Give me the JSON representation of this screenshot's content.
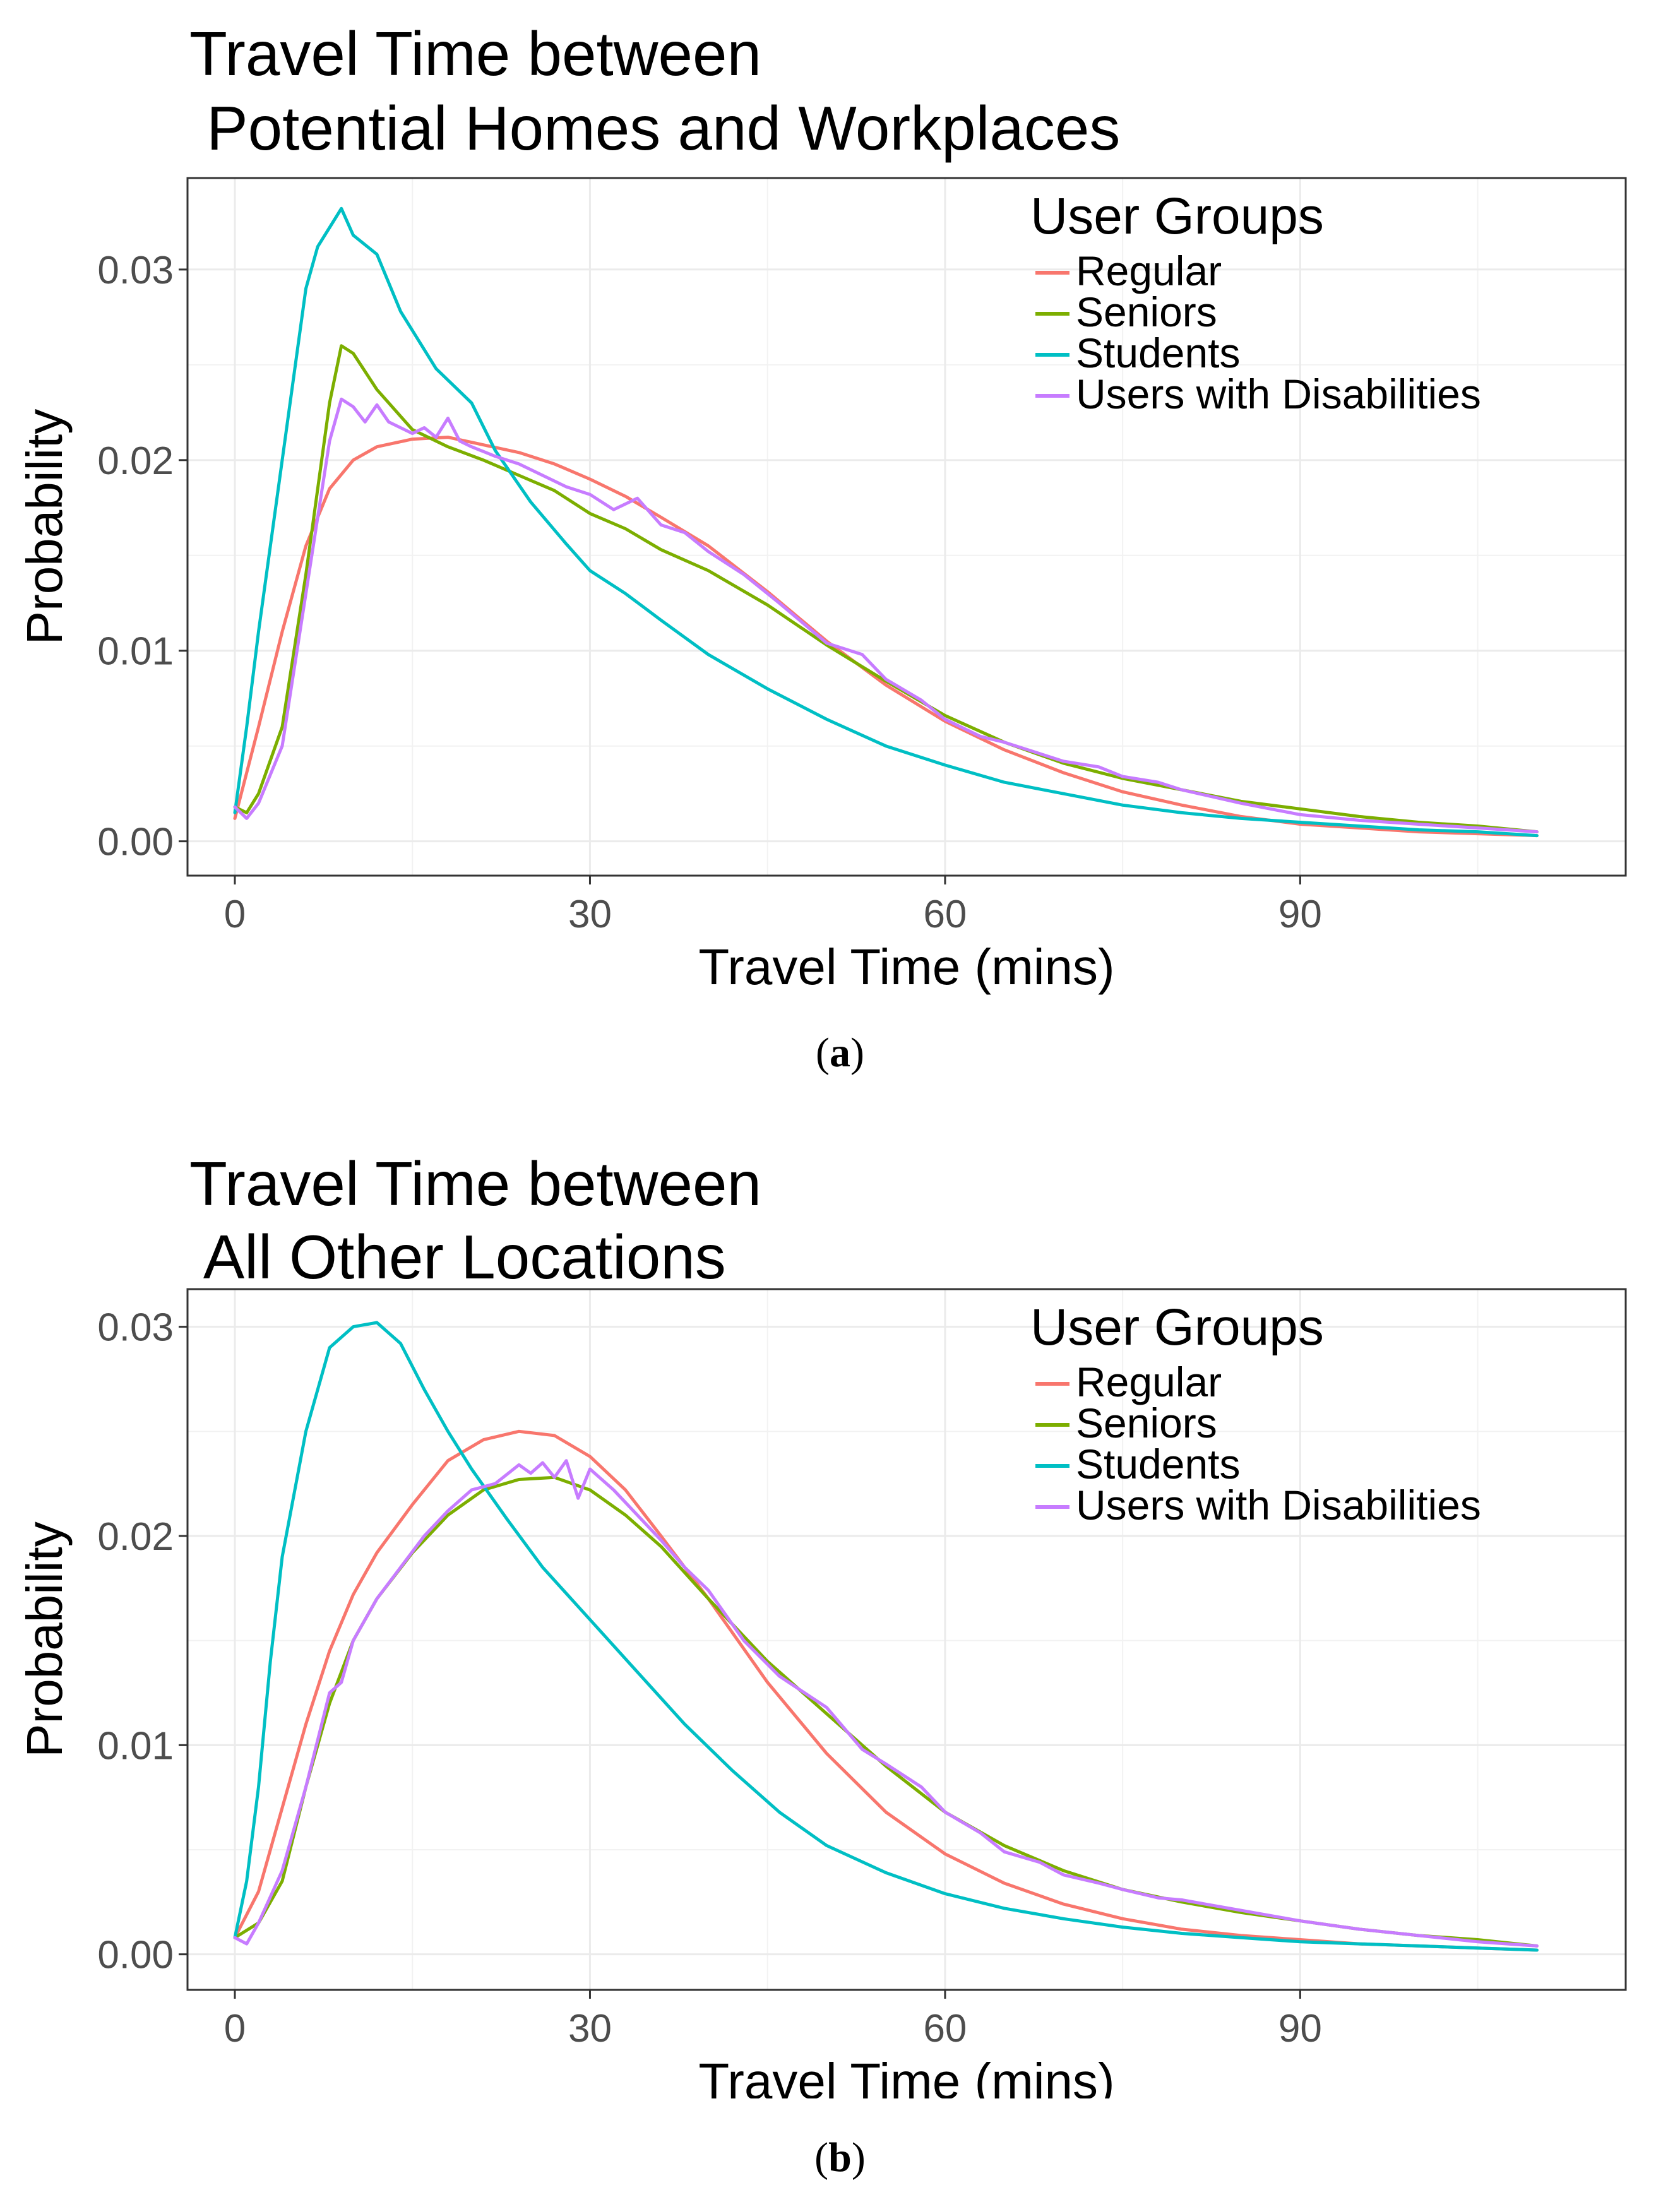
{
  "chart_data": [
    {
      "type": "line",
      "title_lines": [
        "Travel Time between",
        " Potential Homes and Workplaces"
      ],
      "xlabel": "Travel Time (mins)",
      "ylabel": "Probability",
      "xlim": [
        -4,
        117.5
      ],
      "ylim": [
        -0.0018,
        0.0348
      ],
      "xticks": [
        0,
        30,
        60,
        90
      ],
      "xtick_labels": [
        "0",
        "30",
        "60",
        "90"
      ],
      "yticks": [
        0.0,
        0.01,
        0.02,
        0.03
      ],
      "ytick_labels": [
        "0.00",
        "0.01",
        "0.02",
        "0.03"
      ],
      "grid": true,
      "legend_title": "User Groups",
      "legend_position": "top-right",
      "caption_open": "(",
      "caption_letter": "a",
      "caption_close": ")",
      "series": [
        {
          "name": "Regular",
          "color": "#F8766D",
          "x": [
            0,
            2,
            4,
            6,
            8,
            10,
            12,
            15,
            18,
            21,
            24,
            27,
            30,
            33,
            36,
            40,
            45,
            50,
            55,
            60,
            65,
            70,
            75,
            80,
            85,
            90,
            95,
            100,
            105,
            110
          ],
          "y": [
            0.0012,
            0.006,
            0.011,
            0.0155,
            0.0185,
            0.02,
            0.0207,
            0.0211,
            0.0212,
            0.0208,
            0.0204,
            0.0198,
            0.019,
            0.0181,
            0.017,
            0.0155,
            0.0131,
            0.0105,
            0.0082,
            0.0063,
            0.0048,
            0.0036,
            0.0026,
            0.0019,
            0.0013,
            0.0009,
            0.0007,
            0.0005,
            0.0004,
            0.0003
          ]
        },
        {
          "name": "Seniors",
          "color": "#7CAE00",
          "x": [
            0,
            1,
            2,
            4,
            6,
            8,
            9,
            10,
            12,
            15,
            18,
            21,
            24,
            27,
            30,
            33,
            36,
            40,
            45,
            50,
            55,
            60,
            65,
            70,
            75,
            80,
            85,
            90,
            95,
            100,
            105,
            110
          ],
          "y": [
            0.0018,
            0.0015,
            0.0025,
            0.006,
            0.014,
            0.023,
            0.026,
            0.0256,
            0.0237,
            0.0216,
            0.0207,
            0.02,
            0.0192,
            0.0184,
            0.0172,
            0.0164,
            0.0153,
            0.0142,
            0.0124,
            0.0103,
            0.0084,
            0.0066,
            0.0052,
            0.0041,
            0.0033,
            0.0027,
            0.0021,
            0.0017,
            0.0013,
            0.001,
            0.0008,
            0.0005
          ]
        },
        {
          "name": "Students",
          "color": "#00BFC4",
          "x": [
            0,
            1,
            2,
            4,
            6,
            7,
            8,
            9,
            10,
            12,
            14,
            17,
            20,
            22,
            25,
            28,
            30,
            33,
            36,
            40,
            45,
            50,
            55,
            60,
            65,
            70,
            75,
            80,
            85,
            90,
            95,
            100,
            105,
            110
          ],
          "y": [
            0.0015,
            0.006,
            0.011,
            0.02,
            0.029,
            0.0312,
            0.0322,
            0.0332,
            0.0318,
            0.0308,
            0.0278,
            0.0248,
            0.023,
            0.0205,
            0.0178,
            0.0156,
            0.0142,
            0.013,
            0.0116,
            0.0098,
            0.008,
            0.0064,
            0.005,
            0.004,
            0.0031,
            0.0025,
            0.0019,
            0.0015,
            0.0012,
            0.001,
            0.0008,
            0.0006,
            0.0005,
            0.0003
          ]
        },
        {
          "name": "Users with Disabilities",
          "color": "#C77CFF",
          "x": [
            0,
            1,
            2,
            4,
            6,
            8,
            9,
            10,
            11,
            12,
            13,
            15,
            16,
            17,
            18,
            19,
            20,
            22,
            24,
            26,
            28,
            30,
            32,
            34,
            36,
            38,
            40,
            43,
            46,
            50,
            53,
            55,
            58,
            60,
            63,
            65,
            68,
            70,
            73,
            75,
            78,
            80,
            85,
            90,
            95,
            100,
            105,
            110
          ],
          "y": [
            0.0018,
            0.0012,
            0.002,
            0.005,
            0.013,
            0.021,
            0.0232,
            0.0228,
            0.022,
            0.0229,
            0.022,
            0.0214,
            0.0217,
            0.0212,
            0.0222,
            0.021,
            0.0207,
            0.0202,
            0.0198,
            0.0192,
            0.0186,
            0.0182,
            0.0174,
            0.018,
            0.0166,
            0.0162,
            0.0152,
            0.014,
            0.0125,
            0.0104,
            0.0098,
            0.0085,
            0.0074,
            0.0064,
            0.0055,
            0.0052,
            0.0046,
            0.0042,
            0.0039,
            0.0034,
            0.0031,
            0.0027,
            0.002,
            0.0014,
            0.0011,
            0.0009,
            0.0007,
            0.0005
          ]
        }
      ]
    },
    {
      "type": "line",
      "title_lines": [
        "Travel Time between",
        " All Other Locations"
      ],
      "xlabel": "Travel Time (mins)",
      "ylabel": "Probability",
      "xlim": [
        -4,
        117.5
      ],
      "ylim": [
        -0.0017,
        0.0318
      ],
      "xticks": [
        0,
        30,
        60,
        90
      ],
      "xtick_labels": [
        "0",
        "30",
        "60",
        "90"
      ],
      "yticks": [
        0.0,
        0.01,
        0.02,
        0.03
      ],
      "ytick_labels": [
        "0.00",
        "0.01",
        "0.02",
        "0.03"
      ],
      "grid": true,
      "legend_title": "User Groups",
      "legend_position": "top-right",
      "caption_open": "(",
      "caption_letter": "b",
      "caption_close": ")",
      "series": [
        {
          "name": "Regular",
          "color": "#F8766D",
          "x": [
            0,
            2,
            4,
            6,
            8,
            10,
            12,
            15,
            18,
            21,
            24,
            27,
            30,
            33,
            36,
            40,
            45,
            50,
            55,
            60,
            65,
            70,
            75,
            80,
            85,
            90,
            95,
            100,
            105,
            110
          ],
          "y": [
            0.0008,
            0.003,
            0.007,
            0.011,
            0.0145,
            0.0172,
            0.0192,
            0.0215,
            0.0236,
            0.0246,
            0.025,
            0.0248,
            0.0238,
            0.0222,
            0.02,
            0.017,
            0.013,
            0.0096,
            0.0068,
            0.0048,
            0.0034,
            0.0024,
            0.0017,
            0.0012,
            0.0009,
            0.0007,
            0.0005,
            0.0004,
            0.0003,
            0.0002
          ]
        },
        {
          "name": "Seniors",
          "color": "#7CAE00",
          "x": [
            0,
            2,
            4,
            6,
            8,
            10,
            12,
            15,
            18,
            21,
            24,
            27,
            30,
            33,
            36,
            40,
            45,
            50,
            55,
            60,
            65,
            70,
            75,
            80,
            85,
            90,
            95,
            100,
            105,
            110
          ],
          "y": [
            0.0008,
            0.0015,
            0.0035,
            0.008,
            0.012,
            0.015,
            0.017,
            0.0192,
            0.021,
            0.0222,
            0.0227,
            0.0228,
            0.0222,
            0.021,
            0.0195,
            0.017,
            0.014,
            0.0115,
            0.009,
            0.0068,
            0.0052,
            0.004,
            0.0031,
            0.0025,
            0.002,
            0.0016,
            0.0012,
            0.0009,
            0.0007,
            0.0004
          ]
        },
        {
          "name": "Students",
          "color": "#00BFC4",
          "x": [
            0,
            1,
            2,
            3,
            4,
            6,
            8,
            10,
            12,
            14,
            16,
            18,
            20,
            23,
            26,
            30,
            34,
            38,
            42,
            46,
            50,
            55,
            60,
            65,
            70,
            75,
            80,
            85,
            90,
            95,
            100,
            105,
            110
          ],
          "y": [
            0.0008,
            0.0035,
            0.008,
            0.014,
            0.019,
            0.025,
            0.029,
            0.03,
            0.0302,
            0.0292,
            0.027,
            0.025,
            0.0232,
            0.0208,
            0.0185,
            0.016,
            0.0135,
            0.011,
            0.0088,
            0.0068,
            0.0052,
            0.0039,
            0.0029,
            0.0022,
            0.0017,
            0.0013,
            0.001,
            0.0008,
            0.0006,
            0.0005,
            0.0004,
            0.0003,
            0.0002
          ]
        },
        {
          "name": "Users with Disabilities",
          "color": "#C77CFF",
          "x": [
            0,
            1,
            2,
            4,
            6,
            8,
            9,
            10,
            12,
            14,
            16,
            18,
            20,
            22,
            24,
            25,
            26,
            27,
            28,
            29,
            30,
            32,
            34,
            36,
            38,
            40,
            43,
            46,
            50,
            53,
            55,
            58,
            60,
            63,
            65,
            68,
            70,
            73,
            75,
            78,
            80,
            85,
            90,
            95,
            100,
            105,
            110
          ],
          "y": [
            0.0008,
            0.0005,
            0.0015,
            0.004,
            0.008,
            0.0125,
            0.013,
            0.015,
            0.017,
            0.0185,
            0.02,
            0.0212,
            0.0222,
            0.0225,
            0.0234,
            0.023,
            0.0235,
            0.0228,
            0.0236,
            0.0218,
            0.0232,
            0.0222,
            0.021,
            0.0198,
            0.0185,
            0.0174,
            0.015,
            0.0133,
            0.0118,
            0.0098,
            0.0091,
            0.008,
            0.0068,
            0.0058,
            0.0049,
            0.0044,
            0.0038,
            0.0034,
            0.0031,
            0.0027,
            0.0026,
            0.0021,
            0.0016,
            0.0012,
            0.0009,
            0.0006,
            0.0004
          ]
        }
      ]
    }
  ]
}
